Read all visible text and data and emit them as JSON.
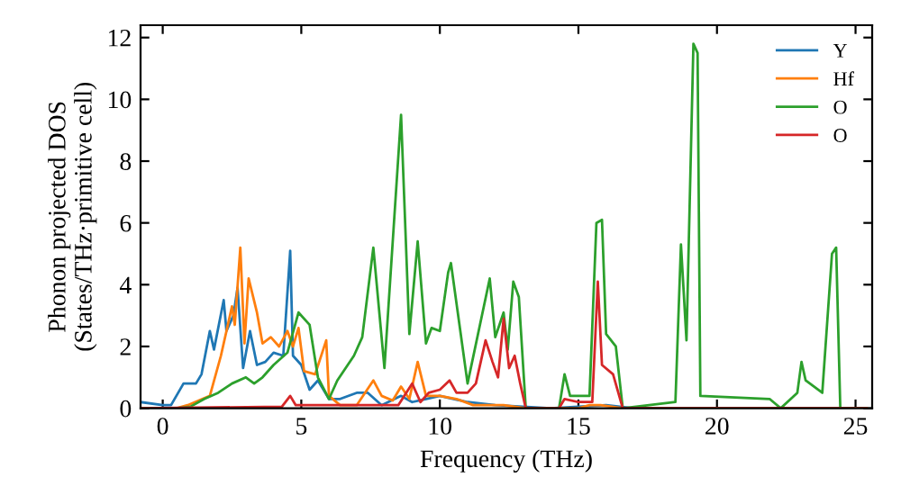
{
  "chart_data": {
    "type": "line",
    "xlabel": "Frequency (THz)",
    "ylabel": "Phonon projected DOS\n(States/THz·primitive cell)",
    "xlim": [
      -0.8,
      25.6
    ],
    "ylim": [
      0,
      12.4
    ],
    "xticks": [
      0,
      5,
      10,
      15,
      20,
      25
    ],
    "yticks": [
      0,
      2,
      4,
      6,
      8,
      10,
      12
    ],
    "legend": "top right",
    "grid": false,
    "marker": "none",
    "line_style": "solid",
    "series": [
      {
        "name": "Y",
        "color": "#1f77b4",
        "x": [
          -0.8,
          0,
          0.3,
          0.75,
          1.2,
          1.4,
          1.7,
          1.85,
          2.2,
          2.3,
          2.55,
          2.7,
          2.9,
          3.15,
          3.4,
          3.7,
          4.0,
          4.35,
          4.6,
          4.7,
          5.0,
          5.3,
          5.6,
          6.0,
          6.4,
          7.0,
          7.4,
          7.9,
          8.6,
          9.0,
          9.5,
          10.0,
          10.5,
          11.0,
          12.0,
          13.0,
          14.0,
          15.0,
          16.0,
          17.0,
          25.4
        ],
        "values": [
          0.2,
          0.1,
          0.1,
          0.8,
          0.8,
          1.1,
          2.5,
          1.9,
          3.5,
          2.5,
          3.0,
          3.9,
          1.3,
          2.5,
          1.4,
          1.5,
          1.8,
          1.7,
          5.1,
          1.7,
          1.4,
          0.6,
          0.9,
          0.3,
          0.3,
          0.5,
          0.5,
          0.1,
          0.4,
          0.2,
          0.3,
          0.4,
          0.3,
          0.2,
          0.1,
          0.05,
          0,
          0.05,
          0.1,
          0,
          0
        ]
      },
      {
        "name": "Hf",
        "color": "#ff7f0e",
        "x": [
          -0.8,
          0.5,
          0.9,
          1.7,
          2.1,
          2.5,
          2.6,
          2.8,
          2.95,
          3.1,
          3.4,
          3.6,
          3.9,
          4.2,
          4.5,
          4.7,
          4.9,
          5.1,
          5.5,
          5.9,
          6.0,
          6.4,
          7.0,
          7.6,
          7.9,
          8.3,
          8.6,
          8.9,
          9.2,
          9.5,
          10.0,
          10.6,
          11.2,
          12.3,
          13.1,
          15.0,
          15.4,
          15.8,
          16.6,
          25.4
        ],
        "values": [
          0,
          0,
          0.1,
          0.4,
          1.7,
          3.3,
          2.7,
          5.2,
          2.1,
          4.2,
          3.1,
          2.1,
          2.3,
          2.0,
          2.5,
          2.0,
          2.6,
          1.2,
          1.1,
          2.2,
          0.4,
          0.1,
          0.1,
          0.9,
          0.4,
          0.25,
          0.7,
          0.3,
          1.5,
          0.4,
          0.4,
          0.3,
          0.1,
          0.1,
          0,
          0,
          0.1,
          0.1,
          0,
          0
        ]
      },
      {
        "name": "O",
        "color": "#2ca02c",
        "x": [
          -0.8,
          0.5,
          1.0,
          1.5,
          2.0,
          2.5,
          3.0,
          3.3,
          3.6,
          4.0,
          4.5,
          4.9,
          5.3,
          5.6,
          6.0,
          6.3,
          6.9,
          7.2,
          7.6,
          8.0,
          8.6,
          8.9,
          9.2,
          9.5,
          9.7,
          10.0,
          10.3,
          10.4,
          11.0,
          11.8,
          12.0,
          12.3,
          12.45,
          12.65,
          12.85,
          13.1,
          14.3,
          14.5,
          14.7,
          15.4,
          15.65,
          15.85,
          16.0,
          16.35,
          16.6,
          18.5,
          18.7,
          18.9,
          19.15,
          19.3,
          19.4,
          21.9,
          22.3,
          22.9,
          23.05,
          23.2,
          23.8,
          24.15,
          24.3,
          24.45,
          25.4
        ],
        "values": [
          0,
          0,
          0.05,
          0.3,
          0.5,
          0.8,
          1.0,
          0.8,
          1.0,
          1.4,
          1.8,
          3.1,
          2.7,
          1.0,
          0.3,
          0.9,
          1.7,
          2.3,
          5.2,
          1.3,
          9.5,
          2.4,
          5.4,
          2.1,
          2.6,
          2.5,
          4.4,
          4.7,
          0.8,
          4.2,
          2.3,
          3.1,
          1.9,
          4.1,
          3.6,
          0,
          0,
          1.1,
          0.4,
          0.4,
          6.0,
          6.1,
          2.4,
          2.0,
          0,
          0.2,
          5.3,
          2.2,
          11.8,
          11.5,
          0.4,
          0.3,
          0,
          0.5,
          1.5,
          0.9,
          0.5,
          5.0,
          5.2,
          0,
          0
        ]
      },
      {
        "name": "O",
        "color": "#d62728",
        "x": [
          -0.8,
          4.3,
          4.6,
          4.8,
          8.5,
          9.0,
          9.3,
          9.6,
          10.0,
          10.35,
          10.6,
          11.0,
          11.3,
          11.65,
          11.9,
          12.1,
          12.3,
          12.5,
          12.7,
          12.9,
          13.1,
          14.3,
          14.5,
          15.0,
          15.5,
          15.7,
          15.85,
          16.25,
          16.6,
          25.4
        ],
        "values": [
          0,
          0.05,
          0.4,
          0.1,
          0.1,
          0.8,
          0.2,
          0.5,
          0.6,
          0.9,
          0.5,
          0.5,
          0.8,
          2.2,
          1.5,
          1.0,
          2.9,
          1.3,
          1.7,
          0.8,
          0,
          0,
          0.3,
          0.2,
          0.2,
          4.1,
          1.4,
          1.1,
          0,
          0
        ]
      }
    ]
  }
}
